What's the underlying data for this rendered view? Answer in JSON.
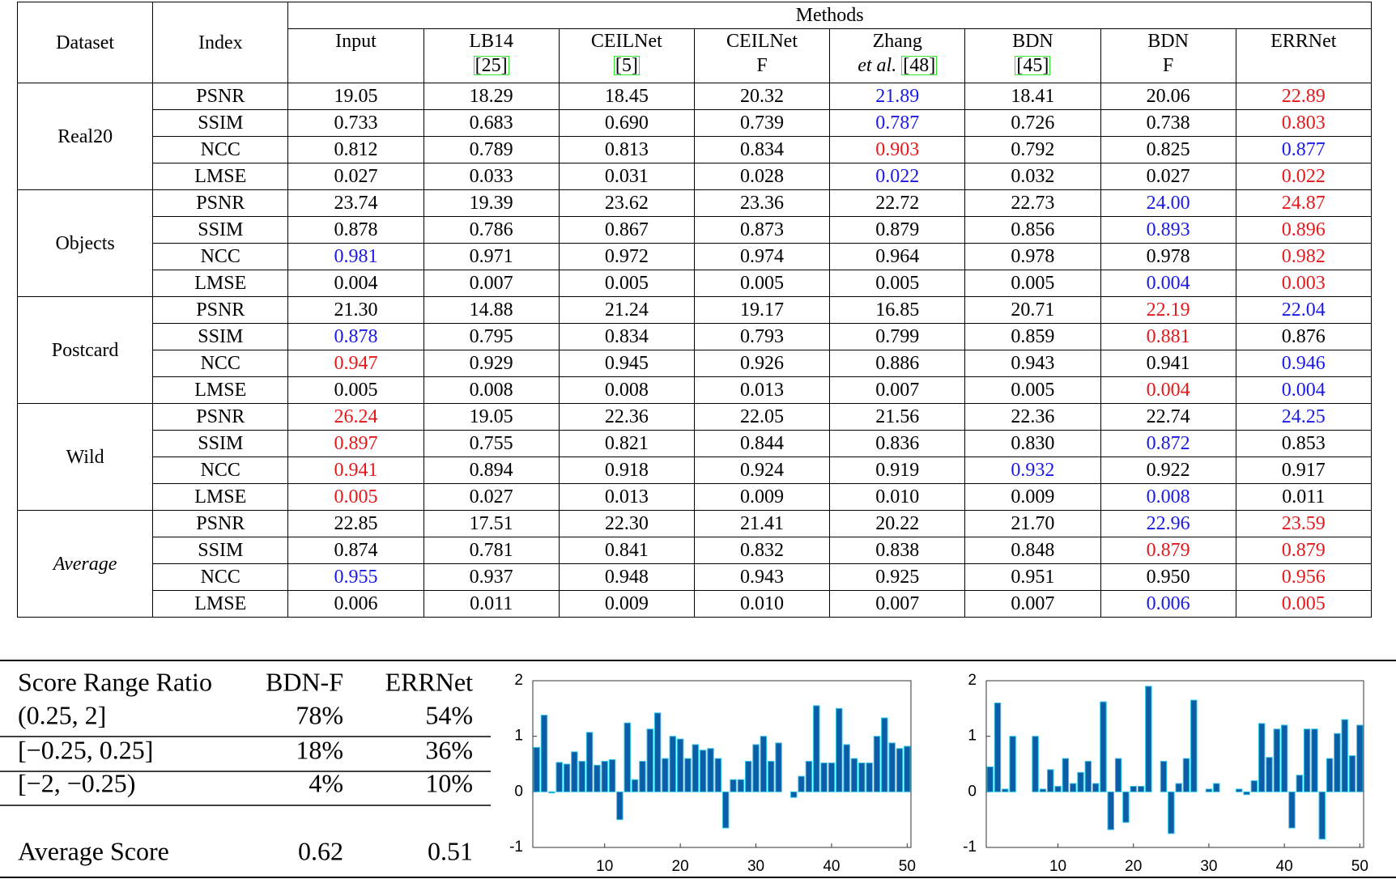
{
  "table": {
    "header": {
      "dataset": "Dataset",
      "index": "Index",
      "methods_label": "Methods",
      "methods": [
        {
          "name": "Input"
        },
        {
          "name": "LB14",
          "ref": "[25]"
        },
        {
          "name": "CEILNet",
          "ref": "[5]"
        },
        {
          "name": "CEILNet",
          "sub": "F"
        },
        {
          "name": "Zhang",
          "sub": "et al.",
          "sub_style": "italic",
          "ref": "[48]"
        },
        {
          "name": "BDN",
          "ref": "[45]"
        },
        {
          "name": "BDN",
          "sub": "F"
        },
        {
          "name": "ERRNet"
        }
      ]
    },
    "groups": [
      {
        "name": "Real20",
        "rows": [
          {
            "index": "PSNR",
            "cells": [
              "19.05",
              "18.29",
              "18.45",
              "20.32",
              {
                "text": "21.89",
                "color": "#1a1ae6"
              },
              "18.41",
              "20.06",
              {
                "text": "22.89",
                "color": "#e3191c"
              }
            ]
          },
          {
            "index": "SSIM",
            "cells": [
              "0.733",
              "0.683",
              "0.690",
              "0.739",
              {
                "text": "0.787",
                "color": "#1a1ae6"
              },
              "0.726",
              "0.738",
              {
                "text": "0.803",
                "color": "#e3191c"
              }
            ]
          },
          {
            "index": "NCC",
            "cells": [
              "0.812",
              "0.789",
              "0.813",
              "0.834",
              {
                "text": "0.903",
                "color": "#e3191c"
              },
              "0.792",
              "0.825",
              {
                "text": "0.877",
                "color": "#1a1ae6"
              }
            ]
          },
          {
            "index": "LMSE",
            "cells": [
              "0.027",
              "0.033",
              "0.031",
              "0.028",
              {
                "text": "0.022",
                "color": "#1a1ae6"
              },
              "0.032",
              "0.027",
              {
                "text": "0.022",
                "color": "#e3191c"
              }
            ]
          }
        ]
      },
      {
        "name": "Objects",
        "rows": [
          {
            "index": "PSNR",
            "cells": [
              "23.74",
              "19.39",
              "23.62",
              "23.36",
              "22.72",
              "22.73",
              {
                "text": "24.00",
                "color": "#1a1ae6"
              },
              {
                "text": "24.87",
                "color": "#e3191c"
              }
            ]
          },
          {
            "index": "SSIM",
            "cells": [
              "0.878",
              "0.786",
              "0.867",
              "0.873",
              "0.879",
              "0.856",
              {
                "text": "0.893",
                "color": "#1a1ae6"
              },
              {
                "text": "0.896",
                "color": "#e3191c"
              }
            ]
          },
          {
            "index": "NCC",
            "cells": [
              {
                "text": "0.981",
                "color": "#1a1ae6"
              },
              "0.971",
              "0.972",
              "0.974",
              "0.964",
              "0.978",
              "0.978",
              {
                "text": "0.982",
                "color": "#e3191c"
              }
            ]
          },
          {
            "index": "LMSE",
            "cells": [
              "0.004",
              "0.007",
              "0.005",
              "0.005",
              "0.005",
              "0.005",
              {
                "text": "0.004",
                "color": "#1a1ae6"
              },
              {
                "text": "0.003",
                "color": "#e3191c"
              }
            ]
          }
        ]
      },
      {
        "name": "Postcard",
        "rows": [
          {
            "index": "PSNR",
            "cells": [
              "21.30",
              "14.88",
              "21.24",
              "19.17",
              "16.85",
              "20.71",
              {
                "text": "22.19",
                "color": "#e3191c"
              },
              {
                "text": "22.04",
                "color": "#1a1ae6"
              }
            ]
          },
          {
            "index": "SSIM",
            "cells": [
              {
                "text": "0.878",
                "color": "#1a1ae6"
              },
              "0.795",
              "0.834",
              "0.793",
              "0.799",
              "0.859",
              {
                "text": "0.881",
                "color": "#e3191c"
              },
              "0.876"
            ]
          },
          {
            "index": "NCC",
            "cells": [
              {
                "text": "0.947",
                "color": "#e3191c"
              },
              "0.929",
              "0.945",
              "0.926",
              "0.886",
              "0.943",
              "0.941",
              {
                "text": "0.946",
                "color": "#1a1ae6"
              }
            ]
          },
          {
            "index": "LMSE",
            "cells": [
              "0.005",
              "0.008",
              "0.008",
              "0.013",
              "0.007",
              "0.005",
              {
                "text": "0.004",
                "color": "#e3191c"
              },
              {
                "text": "0.004",
                "color": "#1a1ae6"
              }
            ]
          }
        ]
      },
      {
        "name": "Wild",
        "rows": [
          {
            "index": "PSNR",
            "cells": [
              {
                "text": "26.24",
                "color": "#e3191c"
              },
              "19.05",
              "22.36",
              "22.05",
              "21.56",
              "22.36",
              "22.74",
              {
                "text": "24.25",
                "color": "#1a1ae6"
              }
            ]
          },
          {
            "index": "SSIM",
            "cells": [
              {
                "text": "0.897",
                "color": "#e3191c"
              },
              "0.755",
              "0.821",
              "0.844",
              "0.836",
              "0.830",
              {
                "text": "0.872",
                "color": "#1a1ae6"
              },
              "0.853"
            ]
          },
          {
            "index": "NCC",
            "cells": [
              {
                "text": "0.941",
                "color": "#e3191c"
              },
              "0.894",
              "0.918",
              "0.924",
              "0.919",
              {
                "text": "0.932",
                "color": "#1a1ae6"
              },
              "0.922",
              "0.917"
            ]
          },
          {
            "index": "LMSE",
            "cells": [
              {
                "text": "0.005",
                "color": "#e3191c"
              },
              "0.027",
              "0.013",
              "0.009",
              "0.010",
              "0.009",
              {
                "text": "0.008",
                "color": "#1a1ae6"
              },
              "0.011"
            ]
          }
        ]
      },
      {
        "name": "Average",
        "style": "italic",
        "rows": [
          {
            "index": "PSNR",
            "cells": [
              "22.85",
              "17.51",
              "22.30",
              "21.41",
              "20.22",
              "21.70",
              {
                "text": "22.96",
                "color": "#1a1ae6"
              },
              {
                "text": "23.59",
                "color": "#e3191c"
              }
            ]
          },
          {
            "index": "SSIM",
            "cells": [
              "0.874",
              "0.781",
              "0.841",
              "0.832",
              "0.838",
              "0.848",
              {
                "text": "0.879",
                "color": "#e3191c"
              },
              {
                "text": "0.879",
                "color": "#e3191c"
              }
            ]
          },
          {
            "index": "NCC",
            "cells": [
              {
                "text": "0.955",
                "color": "#1a1ae6"
              },
              "0.937",
              "0.948",
              "0.943",
              "0.925",
              "0.951",
              "0.950",
              {
                "text": "0.956",
                "color": "#e3191c"
              }
            ]
          },
          {
            "index": "LMSE",
            "cells": [
              "0.006",
              "0.011",
              "0.009",
              "0.010",
              "0.007",
              "0.007",
              {
                "text": "0.006",
                "color": "#1a1ae6"
              },
              {
                "text": "0.005",
                "color": "#e3191c"
              }
            ]
          }
        ]
      }
    ]
  },
  "score_table": {
    "header": [
      "Score Range Ratio",
      "BDN-F",
      "ERRNet"
    ],
    "rows": [
      [
        "(0.25, 2]",
        "78%",
        "54%"
      ],
      [
        "[−0.25, 0.25]",
        "18%",
        "36%"
      ],
      [
        "[−2, −0.25)",
        "4%",
        "10%"
      ]
    ],
    "footer": [
      "Average Score",
      "0.62",
      "0.51"
    ]
  },
  "chart_data": [
    {
      "type": "bar",
      "color": "#0d5ca6",
      "edge_color": "#2ec8ea",
      "x": [
        1,
        2,
        3,
        4,
        5,
        6,
        7,
        8,
        9,
        10,
        11,
        12,
        13,
        14,
        15,
        16,
        17,
        18,
        19,
        20,
        21,
        22,
        23,
        24,
        25,
        26,
        27,
        28,
        29,
        30,
        31,
        32,
        33,
        34,
        35,
        36,
        37,
        38,
        39,
        40,
        41,
        42,
        43,
        44,
        45,
        46,
        47,
        48,
        49,
        50
      ],
      "values": [
        0.8,
        1.38,
        -0.02,
        0.53,
        0.5,
        0.72,
        0.55,
        1.07,
        0.48,
        0.55,
        0.58,
        -0.5,
        1.24,
        0.22,
        0.55,
        1.13,
        1.42,
        0.6,
        1.0,
        0.95,
        0.6,
        0.85,
        0.75,
        0.78,
        0.6,
        -0.65,
        0.22,
        0.22,
        0.55,
        0.85,
        1.0,
        0.55,
        0.88,
        0.0,
        -0.1,
        0.28,
        0.55,
        1.55,
        0.52,
        0.52,
        1.5,
        0.85,
        0.6,
        0.52,
        0.52,
        1.0,
        1.33,
        0.88,
        0.78,
        0.82
      ],
      "xlim": [
        0.5,
        50.5
      ],
      "xticks": [
        10,
        20,
        30,
        40,
        50
      ],
      "ylim": [
        -1,
        2
      ],
      "yticks": [
        -1,
        0,
        1,
        2
      ]
    },
    {
      "type": "bar",
      "color": "#0d5ca6",
      "edge_color": "#2ec8ea",
      "x": [
        1,
        2,
        3,
        4,
        5,
        6,
        7,
        8,
        9,
        10,
        11,
        12,
        13,
        14,
        15,
        16,
        17,
        18,
        19,
        20,
        21,
        22,
        23,
        24,
        25,
        26,
        27,
        28,
        29,
        30,
        31,
        32,
        33,
        34,
        35,
        36,
        37,
        38,
        39,
        40,
        41,
        42,
        43,
        44,
        45,
        46,
        47,
        48,
        49,
        50
      ],
      "values": [
        0.45,
        1.6,
        0.05,
        1.0,
        0.0,
        0.0,
        1.0,
        0.05,
        0.4,
        0.1,
        0.6,
        0.15,
        0.35,
        0.55,
        0.15,
        1.62,
        -0.68,
        0.6,
        -0.55,
        0.1,
        0.1,
        1.9,
        0.0,
        0.55,
        -0.75,
        0.15,
        0.6,
        1.65,
        0.0,
        0.05,
        0.15,
        0.0,
        0.0,
        0.05,
        -0.05,
        0.2,
        1.23,
        0.62,
        1.13,
        1.2,
        -0.65,
        0.3,
        1.13,
        1.13,
        -0.85,
        0.6,
        1.05,
        1.3,
        0.65,
        1.2
      ],
      "xlim": [
        0.5,
        50.5
      ],
      "xticks": [
        10,
        20,
        30,
        40,
        50
      ],
      "ylim": [
        -1,
        2
      ],
      "yticks": [
        -1,
        0,
        1,
        2
      ]
    }
  ]
}
